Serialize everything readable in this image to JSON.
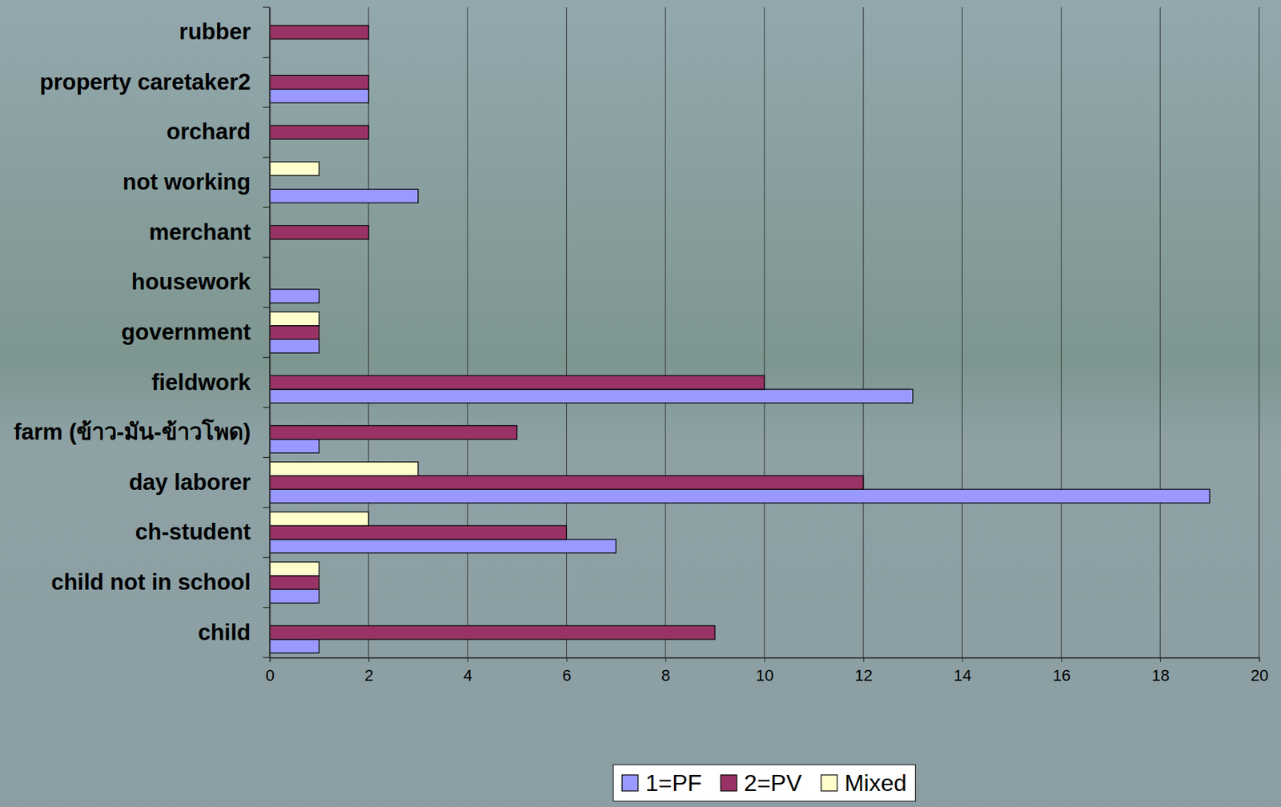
{
  "chart_data": {
    "type": "bar",
    "orientation": "horizontal",
    "categories": [
      "rubber",
      "property caretaker2",
      "orchard",
      "not working",
      "merchant",
      "housework",
      "government",
      "fieldwork",
      "farm (ข้าว-มัน-ข้าวโพด)",
      "day laborer",
      "ch-student",
      "child not in school",
      "child"
    ],
    "series": [
      {
        "name": "1=PF",
        "color": "#9999ff",
        "values": [
          null,
          2,
          null,
          3,
          null,
          1,
          1,
          13,
          1,
          19,
          7,
          1,
          1
        ]
      },
      {
        "name": "2=PV",
        "color": "#993366",
        "values": [
          2,
          2,
          2,
          null,
          2,
          null,
          1,
          10,
          5,
          12,
          6,
          1,
          9
        ]
      },
      {
        "name": "Mixed",
        "color": "#ffffcc",
        "values": [
          null,
          null,
          null,
          1,
          null,
          null,
          1,
          null,
          null,
          3,
          2,
          1,
          null
        ]
      }
    ],
    "xlim": [
      0,
      20
    ],
    "xticks": [
      0,
      2,
      4,
      6,
      8,
      10,
      12,
      14,
      16,
      18,
      20
    ],
    "grid": true,
    "legend": "bottom"
  }
}
